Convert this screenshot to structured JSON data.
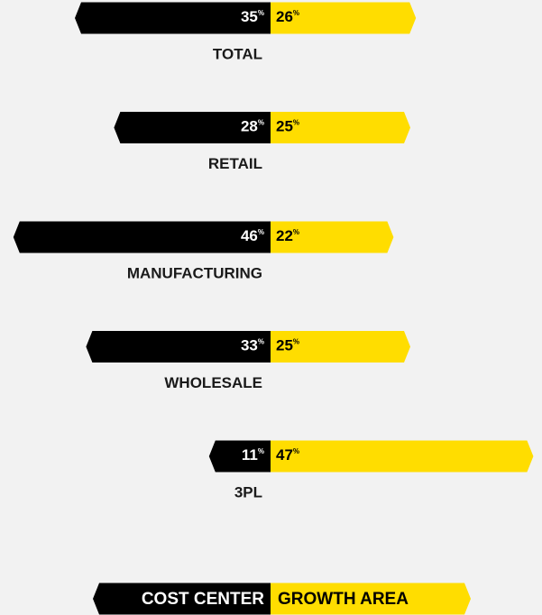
{
  "chart_data": {
    "type": "diverging-bar",
    "categories": [
      "TOTAL",
      "RETAIL",
      "MANUFACTURING",
      "WHOLESALE",
      "3PL"
    ],
    "unit": "%",
    "series": [
      {
        "name": "COST CENTER",
        "color": "#000000",
        "values": [
          35,
          28,
          46,
          33,
          11
        ]
      },
      {
        "name": "GROWTH AREA",
        "color": "#ffdd00",
        "values": [
          26,
          25,
          22,
          25,
          47
        ]
      }
    ],
    "legend": "bottom"
  }
}
